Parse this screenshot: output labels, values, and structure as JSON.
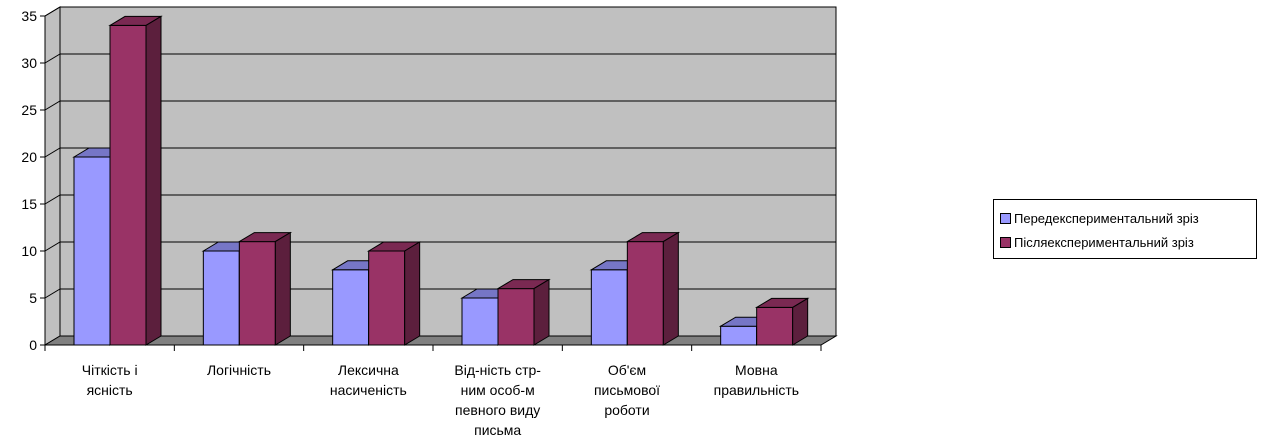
{
  "chart_data": {
    "type": "bar",
    "categories": [
      [
        "Чіткість і",
        "ясність"
      ],
      [
        "Логічність"
      ],
      [
        "Лексична",
        "насиченість"
      ],
      [
        "Від-ність стр-",
        "ним особ-м",
        "певного виду",
        "письма"
      ],
      [
        "Об'єм",
        "письмової",
        "роботи"
      ],
      [
        "Мовна",
        "правильність"
      ]
    ],
    "series": [
      {
        "name": "Передекспериментальний зріз",
        "values": [
          20,
          10,
          8,
          5,
          8,
          2
        ],
        "color": "#9999ff",
        "top_color": "#7676c6",
        "side_color": "#5b5b9c"
      },
      {
        "name": "Післяекспериментальний зріз",
        "values": [
          34,
          11,
          10,
          6,
          11,
          4
        ],
        "color": "#993366",
        "top_color": "#7a2952",
        "side_color": "#5c1f3d"
      }
    ],
    "ylim": [
      0,
      35
    ],
    "yticks": [
      0,
      5,
      10,
      15,
      20,
      25,
      30,
      35
    ],
    "grid": true,
    "wall_color": "#c0c0c0",
    "floor_color": "#808080",
    "legend_position": "right"
  }
}
